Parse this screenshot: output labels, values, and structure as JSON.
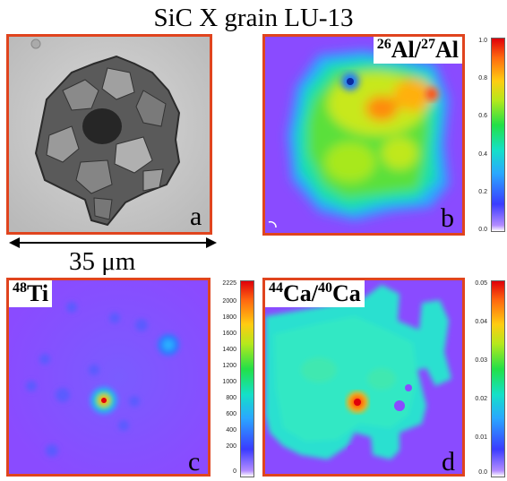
{
  "title": "SiC X grain LU-13",
  "scale_bar": {
    "text": "35 μm"
  },
  "panels": {
    "a": {
      "letter": "a"
    },
    "b": {
      "letter": "b",
      "label": {
        "mass1": "26",
        "el1": "Al/",
        "mass2": "27",
        "el2": "Al"
      },
      "colorbar_ticks": [
        "1.0",
        "0.8",
        "0.6",
        "0.4",
        "0.2",
        "0.0"
      ]
    },
    "c": {
      "letter": "c",
      "label": {
        "mass1": "48",
        "el1": "Ti"
      },
      "colorbar_ticks": [
        "2225",
        "2000",
        "1800",
        "1600",
        "1400",
        "1200",
        "1000",
        "800",
        "600",
        "400",
        "200",
        "0"
      ]
    },
    "d": {
      "letter": "d",
      "label": {
        "mass1": "44",
        "el1": "Ca/",
        "mass2": "40",
        "el2": "Ca"
      },
      "colorbar_ticks": [
        "0.05",
        "0.04",
        "0.03",
        "0.02",
        "0.01",
        "0.0"
      ]
    }
  },
  "colors": {
    "frame": "#e0441e",
    "background_map": "#8a4bff",
    "sem_background": "#c9c9c9"
  }
}
